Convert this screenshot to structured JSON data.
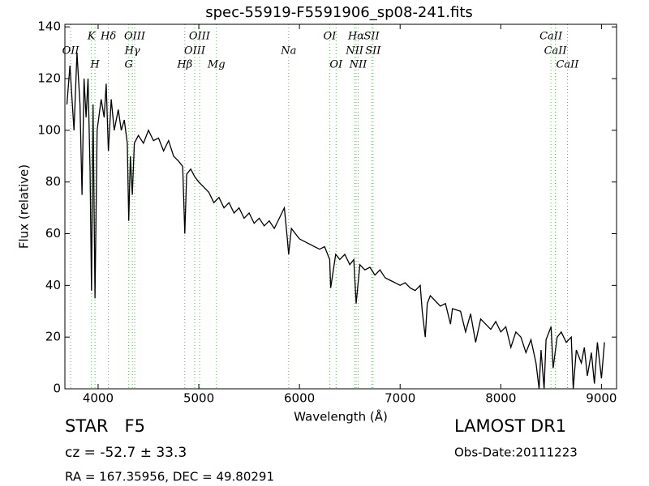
{
  "chart_data": {
    "type": "line",
    "title": "spec-55919-F5591906_sp08-241.fits",
    "x_label": "Wavelength (Å)",
    "y_label": "Flux (relative)",
    "xlim": [
      3670,
      9150
    ],
    "ylim": [
      0,
      141
    ],
    "xticks": [
      4000,
      5000,
      6000,
      7000,
      8000,
      9000
    ],
    "yticks": [
      0,
      20,
      40,
      60,
      80,
      100,
      120,
      140
    ],
    "color": "#000000",
    "line_color": "#55bb55",
    "x": [
      3690,
      3720,
      3760,
      3790,
      3820,
      3840,
      3860,
      3880,
      3900,
      3920,
      3934,
      3950,
      3969,
      3990,
      4030,
      4060,
      4080,
      4102,
      4130,
      4160,
      4200,
      4230,
      4260,
      4290,
      4304,
      4320,
      4340,
      4360,
      4400,
      4450,
      4500,
      4550,
      4600,
      4650,
      4700,
      4750,
      4800,
      4840,
      4861,
      4880,
      4920,
      4960,
      5000,
      5050,
      5100,
      5150,
      5200,
      5250,
      5300,
      5350,
      5400,
      5450,
      5500,
      5550,
      5600,
      5650,
      5700,
      5750,
      5800,
      5850,
      5880,
      5893,
      5920,
      6000,
      6100,
      6200,
      6250,
      6300,
      6310,
      6360,
      6400,
      6450,
      6500,
      6540,
      6563,
      6600,
      6650,
      6700,
      6750,
      6800,
      6850,
      6900,
      6950,
      7000,
      7050,
      7100,
      7150,
      7200,
      7220,
      7250,
      7270,
      7300,
      7350,
      7400,
      7450,
      7500,
      7520,
      7600,
      7650,
      7700,
      7750,
      7800,
      7850,
      7900,
      7950,
      8000,
      8050,
      8100,
      8150,
      8200,
      8250,
      8300,
      8350,
      8380,
      8400,
      8430,
      8450,
      8500,
      8520,
      8560,
      8600,
      8650,
      8700,
      8720,
      8750,
      8800,
      8830,
      8860,
      8900,
      8930,
      8960,
      9000,
      9030
    ],
    "values": [
      110,
      125,
      100,
      130,
      110,
      75,
      120,
      105,
      120,
      85,
      38,
      110,
      35,
      100,
      112,
      105,
      118,
      92,
      112,
      100,
      108,
      100,
      104,
      95,
      65,
      90,
      75,
      95,
      98,
      95,
      100,
      96,
      97,
      92,
      96,
      90,
      88,
      86,
      60,
      83,
      85,
      82,
      80,
      78,
      76,
      72,
      74,
      70,
      72,
      68,
      70,
      66,
      68,
      64,
      66,
      63,
      65,
      62,
      66,
      70,
      58,
      52,
      62,
      58,
      56,
      54,
      55,
      50,
      39,
      52,
      50,
      52,
      48,
      50,
      33,
      48,
      46,
      47,
      44,
      46,
      43,
      42,
      41,
      40,
      41,
      39,
      38,
      40,
      30,
      20,
      33,
      36,
      34,
      32,
      33,
      25,
      31,
      30,
      22,
      29,
      18,
      27,
      25,
      23,
      26,
      22,
      24,
      16,
      22,
      20,
      14,
      19,
      10,
      0,
      15,
      0,
      19,
      24,
      8,
      20,
      22,
      18,
      20,
      0,
      15,
      10,
      16,
      5,
      14,
      2,
      18,
      4,
      18
    ],
    "spectral_lines": [
      {
        "label": "K",
        "wavelength": 3934
      },
      {
        "label": "OII",
        "wavelength": 3727
      },
      {
        "label": "H",
        "wavelength": 3969
      },
      {
        "label": "Hδ",
        "wavelength": 4102
      },
      {
        "label": "Hγ",
        "wavelength": 4340
      },
      {
        "label": "G",
        "wavelength": 4304
      },
      {
        "label": "OIII",
        "wavelength": 4363
      },
      {
        "label": "OIII",
        "wavelength": 4959
      },
      {
        "label": "Hβ",
        "wavelength": 4861
      },
      {
        "label": "OIII",
        "wavelength": 5007
      },
      {
        "label": "Na",
        "wavelength": 5893
      },
      {
        "label": "Mg",
        "wavelength": 5175
      },
      {
        "label": "OI",
        "wavelength": 6300
      },
      {
        "label": "NII",
        "wavelength": 6548
      },
      {
        "label": "OI",
        "wavelength": 6364
      },
      {
        "label": "Hα",
        "wavelength": 6563
      },
      {
        "label": "CaII",
        "wavelength": 8542
      },
      {
        "label": "NII",
        "wavelength": 6583
      },
      {
        "label": "SII",
        "wavelength": 6717
      },
      {
        "label": "SII",
        "wavelength": 6731
      },
      {
        "label": "CaII",
        "wavelength": 8662
      },
      {
        "label": "CaII",
        "wavelength": 8498
      }
    ],
    "annotations": {
      "object": "STAR   F5",
      "cz": "cz = -52.7 ± 33.3",
      "coords": "RA = 167.35956, DEC = 49.80291",
      "survey": "LAMOST DR1",
      "date": "Obs-Date:20111223"
    }
  }
}
